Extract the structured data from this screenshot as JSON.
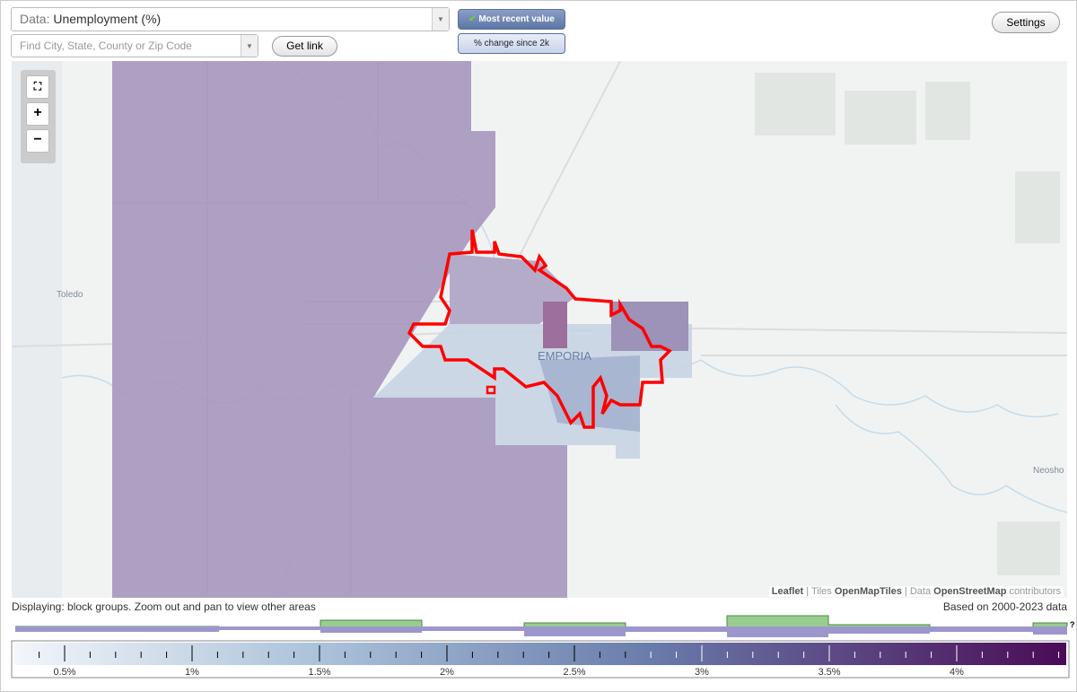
{
  "controls": {
    "data_label": "Data:",
    "data_value": "Unemployment (%)",
    "search_placeholder": "Find City, State, County or Zip Code",
    "get_link": "Get link",
    "most_recent": "Most recent value",
    "change": "% change since 2k",
    "settings": "Settings"
  },
  "map": {
    "places": [
      "Toledo",
      "EMPORIA",
      "Neosho I"
    ],
    "attribution": {
      "leaflet": "Leaflet",
      "tiles": "Tiles",
      "tiles_src": "OpenMapTiles",
      "data": "Data",
      "data_src": "OpenStreetMap",
      "contributors": "contributors"
    }
  },
  "footer": {
    "displaying": "Displaying: block groups. Zoom out and pan to view other areas",
    "based_on": "Based on 2000-2023 data"
  },
  "legend": {
    "labels": [
      "0.5%",
      "1%",
      "1.5%",
      "2%",
      "2.5%",
      "3%",
      "3.5%",
      "4%"
    ],
    "help": "?"
  }
}
